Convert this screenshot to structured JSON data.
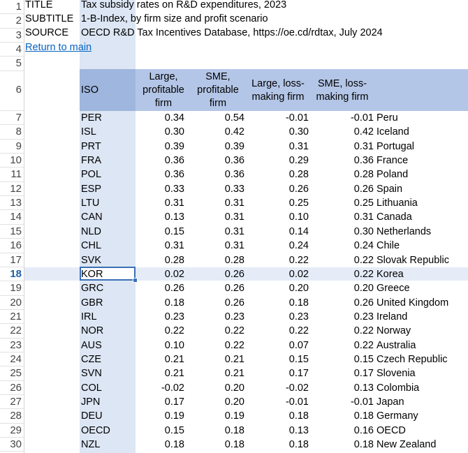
{
  "meta_rows": [
    {
      "label": "TITLE",
      "value": "Tax subsidy rates on R&D expenditures, 2023"
    },
    {
      "label": "SUBTITLE",
      "value": "1-B-Index, by firm size and profit scenario"
    },
    {
      "label": "SOURCE",
      "value": "OECD R&D Tax Incentives Database, https://oe.cd/rdtax, July 2024"
    }
  ],
  "return_link": "Return to main",
  "headers": {
    "iso": "ISO",
    "large_profitable": [
      "Large,",
      "profitable",
      "firm"
    ],
    "sme_profitable": [
      "SME,",
      "profitable",
      "firm"
    ],
    "large_loss": [
      "Large, loss-",
      "making firm"
    ],
    "sme_loss": [
      "SME, loss-",
      "making firm"
    ]
  },
  "row_numbers": [
    "1",
    "2",
    "3",
    "4",
    "5",
    "6",
    "7",
    "8",
    "9",
    "10",
    "11",
    "12",
    "13",
    "14",
    "15",
    "16",
    "17",
    "18",
    "19",
    "20",
    "21",
    "22",
    "23",
    "24",
    "25",
    "26",
    "27",
    "28",
    "29",
    "30"
  ],
  "active_row": "18",
  "selected_cell": "KOR",
  "colors": {
    "header": "#b4c6e7",
    "link": "#0563c1",
    "selection": "#3a6fb5"
  },
  "rows": [
    {
      "iso": "PER",
      "lp": "0.34",
      "sp": "0.54",
      "ll": "-0.01",
      "sl": "-0.01",
      "country": "Peru"
    },
    {
      "iso": "ISL",
      "lp": "0.30",
      "sp": "0.42",
      "ll": "0.30",
      "sl": "0.42",
      "country": "Iceland"
    },
    {
      "iso": "PRT",
      "lp": "0.39",
      "sp": "0.39",
      "ll": "0.31",
      "sl": "0.31",
      "country": "Portugal"
    },
    {
      "iso": "FRA",
      "lp": "0.36",
      "sp": "0.36",
      "ll": "0.29",
      "sl": "0.36",
      "country": "France"
    },
    {
      "iso": "POL",
      "lp": "0.36",
      "sp": "0.36",
      "ll": "0.28",
      "sl": "0.28",
      "country": "Poland"
    },
    {
      "iso": "ESP",
      "lp": "0.33",
      "sp": "0.33",
      "ll": "0.26",
      "sl": "0.26",
      "country": "Spain"
    },
    {
      "iso": "LTU",
      "lp": "0.31",
      "sp": "0.31",
      "ll": "0.25",
      "sl": "0.25",
      "country": "Lithuania"
    },
    {
      "iso": "CAN",
      "lp": "0.13",
      "sp": "0.31",
      "ll": "0.10",
      "sl": "0.31",
      "country": "Canada"
    },
    {
      "iso": "NLD",
      "lp": "0.15",
      "sp": "0.31",
      "ll": "0.14",
      "sl": "0.30",
      "country": "Netherlands"
    },
    {
      "iso": "CHL",
      "lp": "0.31",
      "sp": "0.31",
      "ll": "0.24",
      "sl": "0.24",
      "country": "Chile"
    },
    {
      "iso": "SVK",
      "lp": "0.28",
      "sp": "0.28",
      "ll": "0.22",
      "sl": "0.22",
      "country": "Slovak Republic"
    },
    {
      "iso": "KOR",
      "lp": "0.02",
      "sp": "0.26",
      "ll": "0.02",
      "sl": "0.22",
      "country": "Korea"
    },
    {
      "iso": "GRC",
      "lp": "0.26",
      "sp": "0.26",
      "ll": "0.20",
      "sl": "0.20",
      "country": "Greece"
    },
    {
      "iso": "GBR",
      "lp": "0.18",
      "sp": "0.26",
      "ll": "0.18",
      "sl": "0.26",
      "country": "United Kingdom"
    },
    {
      "iso": "IRL",
      "lp": "0.23",
      "sp": "0.23",
      "ll": "0.23",
      "sl": "0.23",
      "country": "Ireland"
    },
    {
      "iso": "NOR",
      "lp": "0.22",
      "sp": "0.22",
      "ll": "0.22",
      "sl": "0.22",
      "country": "Norway"
    },
    {
      "iso": "AUS",
      "lp": "0.10",
      "sp": "0.22",
      "ll": "0.07",
      "sl": "0.22",
      "country": "Australia"
    },
    {
      "iso": "CZE",
      "lp": "0.21",
      "sp": "0.21",
      "ll": "0.15",
      "sl": "0.15",
      "country": "Czech Republic"
    },
    {
      "iso": "SVN",
      "lp": "0.21",
      "sp": "0.21",
      "ll": "0.17",
      "sl": "0.17",
      "country": "Slovenia"
    },
    {
      "iso": "COL",
      "lp": "-0.02",
      "sp": "0.20",
      "ll": "-0.02",
      "sl": "0.13",
      "country": "Colombia"
    },
    {
      "iso": "JPN",
      "lp": "0.17",
      "sp": "0.20",
      "ll": "-0.01",
      "sl": "-0.01",
      "country": "Japan"
    },
    {
      "iso": "DEU",
      "lp": "0.19",
      "sp": "0.19",
      "ll": "0.18",
      "sl": "0.18",
      "country": "Germany"
    },
    {
      "iso": "OECD",
      "lp": "0.15",
      "sp": "0.18",
      "ll": "0.13",
      "sl": "0.16",
      "country": "OECD"
    },
    {
      "iso": "NZL",
      "lp": "0.18",
      "sp": "0.18",
      "ll": "0.18",
      "sl": "0.18",
      "country": "New Zealand"
    }
  ]
}
